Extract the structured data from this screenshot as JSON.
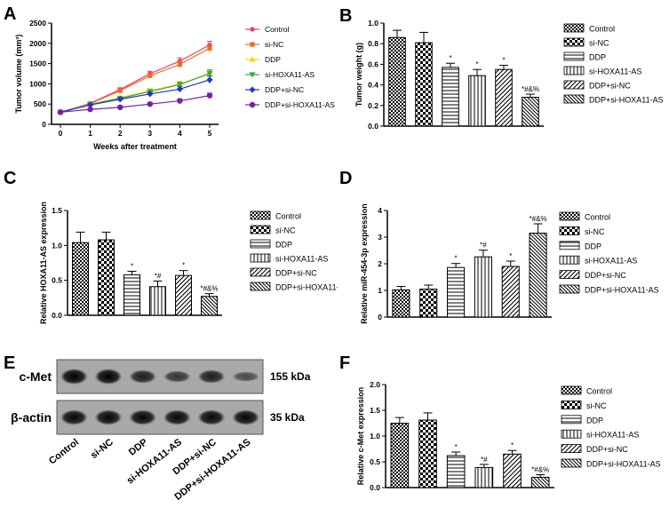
{
  "colors": {
    "axis": "#000000",
    "bar_fill": "#ffffff",
    "control": "#e8397a",
    "si_nc": "#f26b1d",
    "ddp": "#f5d800",
    "si_hoxa11": "#3aaa35",
    "ddp_si_nc": "#2136c8",
    "ddp_si_hoxa11": "#7a1fa2"
  },
  "legend_groups": [
    "Control",
    "si-NC",
    "DDP",
    "si-HOXA11-AS",
    "DDP+si-NC",
    "DDP+si-HOXA11-AS"
  ],
  "chart_data": [
    {
      "panel": "A",
      "type": "line",
      "xlabel": "Weeks after treatment",
      "ylabel": "Tumor volume (mm³)",
      "x": [
        0,
        1,
        2,
        3,
        4,
        5
      ],
      "xticks": [
        "0",
        "1",
        "2",
        "3",
        "4",
        "5"
      ],
      "ylim": [
        0,
        2500
      ],
      "yticks": [
        "0",
        "500",
        "1000",
        "1500",
        "2000",
        "2500"
      ],
      "legend_position": "right",
      "series": [
        {
          "name": "Control",
          "values": [
            300,
            520,
            860,
            1250,
            1560,
            1960
          ],
          "err": [
            20,
            30,
            40,
            60,
            80,
            90
          ]
        },
        {
          "name": "si-NC",
          "values": [
            300,
            510,
            830,
            1200,
            1480,
            1880
          ],
          "err": [
            20,
            30,
            40,
            60,
            80,
            90
          ]
        },
        {
          "name": "DDP",
          "values": [
            300,
            500,
            660,
            830,
            1000,
            1240
          ],
          "err": [
            20,
            25,
            40,
            50,
            60,
            90
          ]
        },
        {
          "name": "si-HOXA11-AS",
          "values": [
            300,
            490,
            640,
            810,
            980,
            1260
          ],
          "err": [
            20,
            25,
            40,
            50,
            60,
            90
          ]
        },
        {
          "name": "DDP+si-NC",
          "values": [
            300,
            480,
            620,
            750,
            870,
            1100
          ],
          "err": [
            20,
            25,
            35,
            45,
            60,
            90
          ]
        },
        {
          "name": "DDP+si-HOXA11-AS",
          "values": [
            300,
            370,
            420,
            500,
            580,
            710
          ],
          "err": [
            20,
            20,
            30,
            40,
            50,
            60
          ]
        }
      ]
    },
    {
      "panel": "B",
      "type": "bar",
      "ylabel": "Tumor weight (g)",
      "categories": [
        "Control",
        "si-NC",
        "DDP",
        "si-HOXA11-AS",
        "DDP+si-NC",
        "DDP+si-HOXA11-AS"
      ],
      "values": [
        0.86,
        0.81,
        0.57,
        0.49,
        0.55,
        0.28
      ],
      "err": [
        0.07,
        0.1,
        0.04,
        0.06,
        0.04,
        0.03
      ],
      "annotations": [
        "",
        "",
        "*",
        "*",
        "*",
        "*#&%"
      ],
      "ylim": [
        0,
        1.0
      ],
      "yticks": [
        "0.0",
        "0.2",
        "0.4",
        "0.6",
        "0.8",
        "1.0"
      ]
    },
    {
      "panel": "C",
      "type": "bar",
      "ylabel": "Relative HOXA11-AS expression",
      "categories": [
        "Control",
        "si-NC",
        "DDP",
        "si-HOXA11-AS",
        "DDP+si-NC",
        "DDP+si-HOXA11-AS"
      ],
      "values": [
        1.04,
        1.08,
        0.58,
        0.41,
        0.57,
        0.27
      ],
      "err": [
        0.15,
        0.11,
        0.05,
        0.08,
        0.07,
        0.04
      ],
      "annotations": [
        "",
        "",
        "*",
        "*#",
        "*",
        "*#&%"
      ],
      "ylim": [
        0,
        1.5
      ],
      "yticks": [
        "0.0",
        "0.5",
        "1.0",
        "1.5"
      ]
    },
    {
      "panel": "D",
      "type": "bar",
      "ylabel": "Relative miR-454-3p expression",
      "categories": [
        "Control",
        "si-NC",
        "DDP",
        "si-HOXA11-AS",
        "DDP+si-NC",
        "DDP+si-HOXA11-AS"
      ],
      "values": [
        1.02,
        1.05,
        1.86,
        2.26,
        1.9,
        3.15
      ],
      "err": [
        0.13,
        0.15,
        0.15,
        0.25,
        0.2,
        0.35
      ],
      "annotations": [
        "",
        "",
        "*",
        "*#",
        "*",
        "*#&%"
      ],
      "ylim": [
        0,
        4
      ],
      "yticks": [
        "0",
        "1",
        "2",
        "3",
        "4"
      ]
    },
    {
      "panel": "F",
      "type": "bar",
      "ylabel": "Relative c-Met expression",
      "categories": [
        "Control",
        "si-NC",
        "DDP",
        "si-HOXA11-AS",
        "DDP+si-NC",
        "DDP+si-HOXA11-AS"
      ],
      "values": [
        1.25,
        1.31,
        0.62,
        0.39,
        0.65,
        0.2
      ],
      "err": [
        0.11,
        0.14,
        0.07,
        0.06,
        0.07,
        0.05
      ],
      "annotations": [
        "",
        "",
        "*",
        "*#",
        "*",
        "*#&%"
      ],
      "ylim": [
        0,
        2.0
      ],
      "yticks": [
        "0.0",
        "0.5",
        "1.0",
        "1.5",
        "2.0"
      ]
    }
  ],
  "blot": {
    "panel": "E",
    "rows": [
      {
        "label": "c-Met",
        "kda": "155 kDa",
        "intensity": [
          1.0,
          1.0,
          0.75,
          0.55,
          0.75,
          0.35
        ]
      },
      {
        "label": "β-actin",
        "kda": "35 kDa",
        "intensity": [
          0.95,
          0.95,
          0.95,
          0.95,
          0.95,
          0.95
        ]
      }
    ],
    "lanes": [
      "Control",
      "si-NC",
      "DDP",
      "si-HOXA11-AS",
      "DDP+si-NC",
      "DDP+si-HOXA11-AS"
    ]
  }
}
